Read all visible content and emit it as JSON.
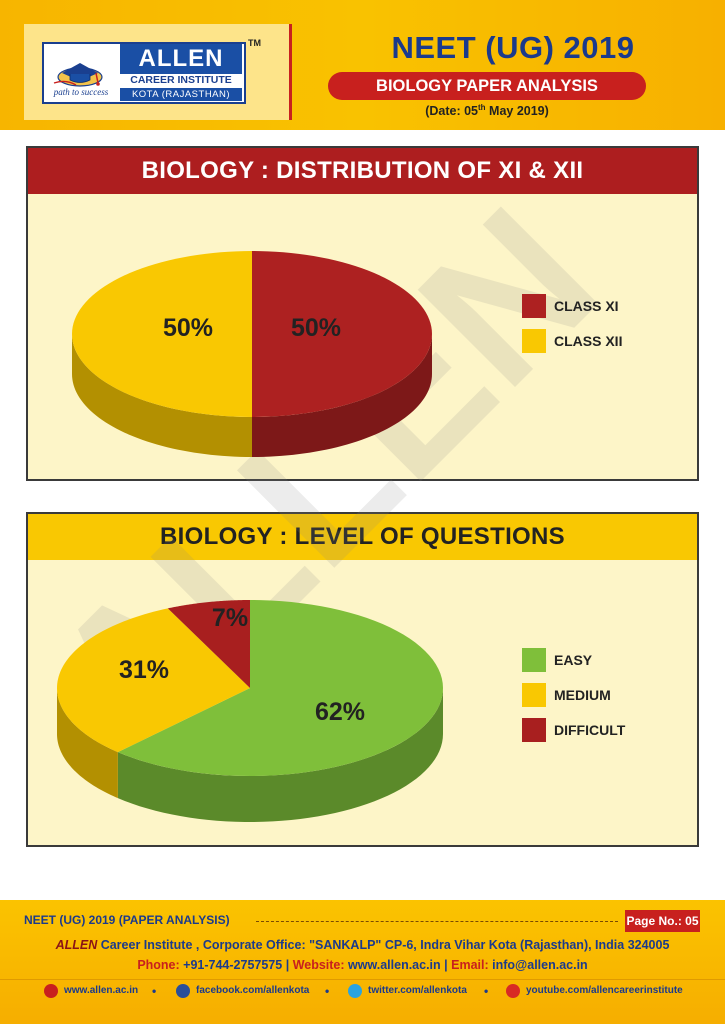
{
  "colors": {
    "header_bg": "#f9c200",
    "brand_red": "#c8201e",
    "brand_blue": "#1b3a8c",
    "panel_bg": "#fdf5c8",
    "class_xi": "#ad2121",
    "class_xii": "#f9c802",
    "easy": "#7fbf3a",
    "medium": "#f9c802",
    "difficult": "#a81f1f"
  },
  "logo": {
    "brand": "ALLEN",
    "institute": "CAREER INSTITUTE",
    "location": "KOTA (RAJASTHAN)",
    "tagline": "path to success",
    "tm": "TM"
  },
  "header": {
    "title": "NEET (UG) 2019",
    "subtitle": "BIOLOGY PAPER ANALYSIS",
    "date": "(Date: 05th May 2019)"
  },
  "watermark_text": "ALLEN",
  "chart_data": [
    {
      "type": "pie",
      "title": "BIOLOGY : DISTRIBUTION OF XI & XII",
      "categories": [
        "CLASS XI",
        "CLASS XII"
      ],
      "values": [
        50,
        50
      ],
      "labels": [
        "50%",
        "50%"
      ],
      "colors": [
        "#ad2121",
        "#f9c802"
      ],
      "legend": "right",
      "style": "3d"
    },
    {
      "type": "pie",
      "title": "BIOLOGY : LEVEL OF QUESTIONS",
      "categories": [
        "EASY",
        "MEDIUM",
        "DIFFICULT"
      ],
      "values": [
        62,
        31,
        7
      ],
      "labels": [
        "62%",
        "31%",
        "7%"
      ],
      "colors": [
        "#7fbf3a",
        "#f9c802",
        "#a81f1f"
      ],
      "legend": "right",
      "style": "3d"
    }
  ],
  "footer": {
    "left_text": "NEET (UG) 2019 (PAPER ANALYSIS)",
    "page_label": "Page No.: 05",
    "corp_brand": "ALLEN",
    "corp_text": " Career Institute , Corporate Office: \"SANKALP\" CP-6, Indra Vihar Kota (Rajasthan), India 324005",
    "phone_label": "Phone:",
    "phone": "+91-744-2757575",
    "website_label": "Website:",
    "website": "www.allen.ac.in",
    "email_label": "Email:",
    "email": "info@allen.ac.in",
    "social": [
      {
        "icon": "globe-icon",
        "text": "www.allen.ac.in"
      },
      {
        "icon": "facebook-icon",
        "text": "facebook.com/allenkota"
      },
      {
        "icon": "twitter-icon",
        "text": "twitter.com/allenkota"
      },
      {
        "icon": "youtube-icon",
        "text": "youtube.com/allencareerinstitute"
      }
    ]
  }
}
